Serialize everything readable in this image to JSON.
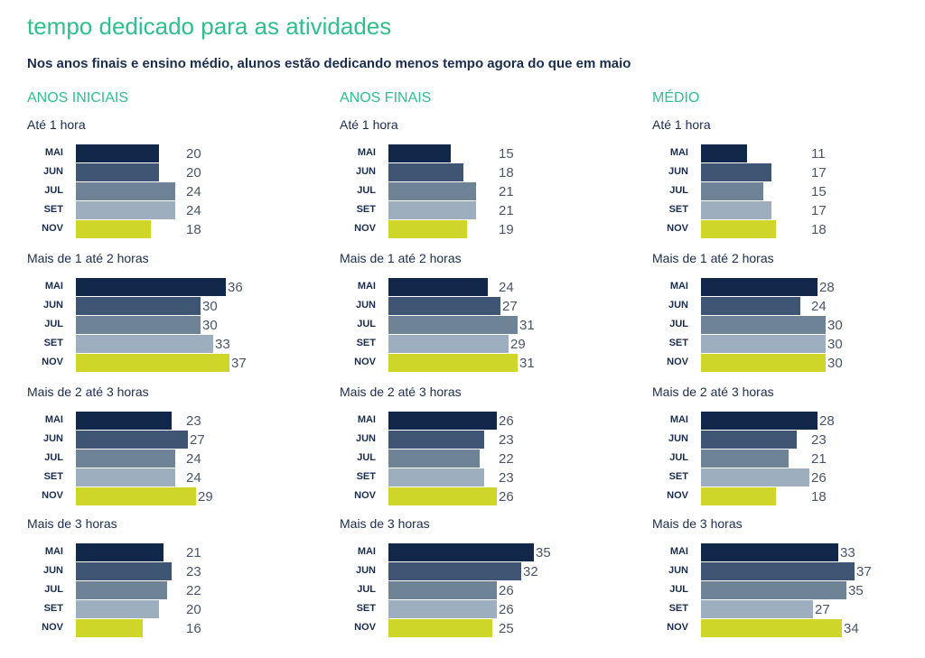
{
  "title": "tempo dedicado para as atividades",
  "subtitle": "Nos anos finais e ensino médio, alunos estão dedicando menos tempo agora do que em maio",
  "colors": {
    "title": "#2ebf8c",
    "MAI": "#12284a",
    "JUN": "#3e5673",
    "JUL": "#6f8397",
    "SET": "#9daebe",
    "NOV": "#cdd629"
  },
  "chart_data": [
    {
      "type": "bar",
      "orientation": "horizontal",
      "panel": "ANOS INICIAIS",
      "categories": [
        "MAI",
        "JUN",
        "JUL",
        "SET",
        "NOV"
      ],
      "groups": [
        {
          "name": "Até 1 hora",
          "values": [
            20,
            20,
            24,
            24,
            18
          ]
        },
        {
          "name": "Mais de 1 até 2 horas",
          "values": [
            36,
            30,
            30,
            33,
            37
          ]
        },
        {
          "name": "Mais de 2 até 3 horas",
          "values": [
            23,
            27,
            24,
            24,
            29
          ]
        },
        {
          "name": "Mais de 3 horas",
          "values": [
            21,
            23,
            22,
            20,
            16
          ]
        }
      ]
    },
    {
      "type": "bar",
      "orientation": "horizontal",
      "panel": "ANOS FINAIS",
      "categories": [
        "MAI",
        "JUN",
        "JUL",
        "SET",
        "NOV"
      ],
      "groups": [
        {
          "name": "Até 1 hora",
          "values": [
            15,
            18,
            21,
            21,
            19
          ]
        },
        {
          "name": "Mais de 1 até 2 horas",
          "values": [
            24,
            27,
            31,
            29,
            31
          ]
        },
        {
          "name": "Mais de 2 até 3 horas",
          "values": [
            26,
            23,
            22,
            23,
            26
          ]
        },
        {
          "name": "Mais de 3 horas",
          "values": [
            35,
            32,
            26,
            26,
            25
          ]
        }
      ]
    },
    {
      "type": "bar",
      "orientation": "horizontal",
      "panel": "MÉDIO",
      "categories": [
        "MAI",
        "JUN",
        "JUL",
        "SET",
        "NOV"
      ],
      "groups": [
        {
          "name": "Até 1 hora",
          "values": [
            11,
            17,
            15,
            17,
            18
          ]
        },
        {
          "name": "Mais de 1 até 2 horas",
          "values": [
            28,
            24,
            30,
            30,
            30
          ]
        },
        {
          "name": "Mais de 2 até 3 horas",
          "values": [
            28,
            23,
            21,
            26,
            18
          ]
        },
        {
          "name": "Mais de 3 horas",
          "values": [
            33,
            37,
            35,
            27,
            34
          ]
        }
      ]
    }
  ]
}
